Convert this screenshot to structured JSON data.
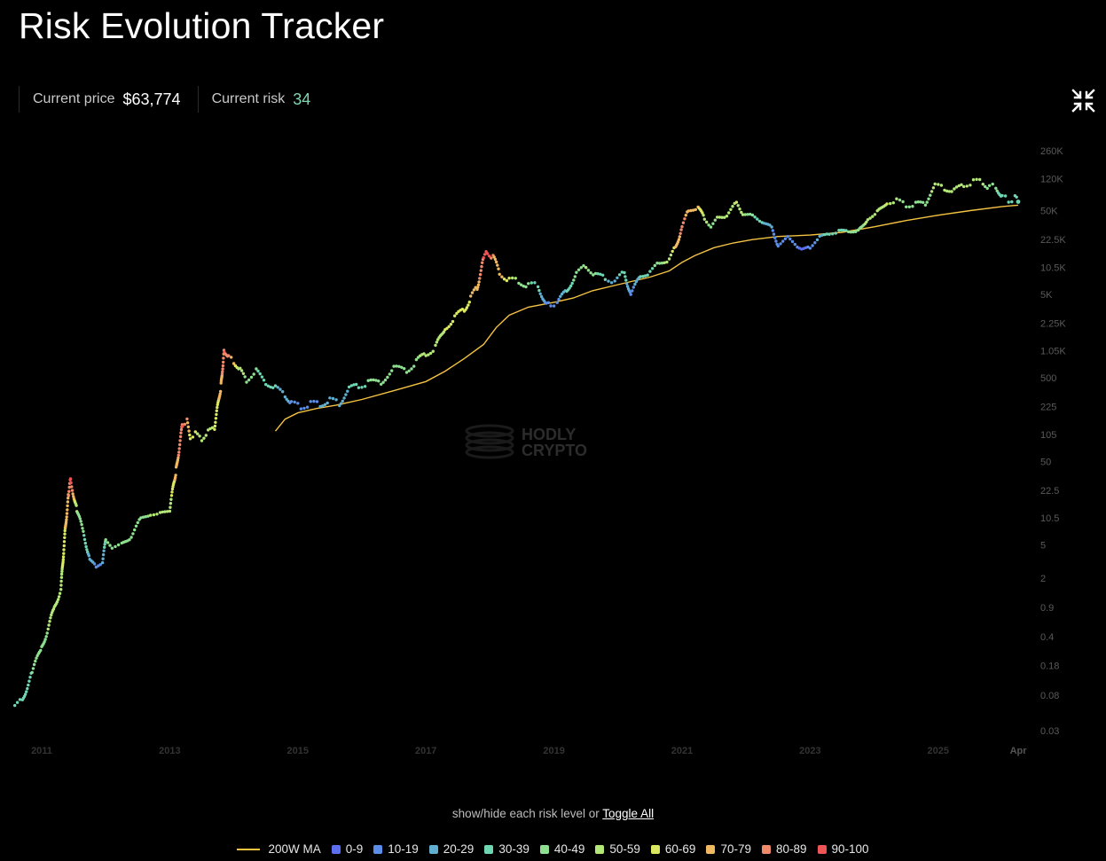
{
  "title": "Risk Evolution Tracker",
  "stats": {
    "price_label": "Current price",
    "price_value": "$63,774",
    "risk_label": "Current risk",
    "risk_value": "34",
    "risk_color": "#7fd6b0"
  },
  "controls": {
    "collapse_icon": "collapse-arrows-icon",
    "toggle_text": "show/hide each risk level or",
    "toggle_all": "Toggle All"
  },
  "watermark": {
    "line1": "HODLY",
    "line2": "CRYPTO"
  },
  "chart_data": {
    "type": "scatter",
    "x_scale": "time",
    "y_scale": "log",
    "x_ticks": [
      "2011",
      "2013",
      "2015",
      "2017",
      "2019",
      "2021",
      "2023",
      "2025",
      "Apr"
    ],
    "y_ticks": [
      "260K",
      "120K",
      "50K",
      "22.5K",
      "10.5K",
      "5K",
      "2.25K",
      "1.05K",
      "500",
      "225",
      "105",
      "50",
      "22.5",
      "10.5",
      "5",
      "2",
      "0.9",
      "0.4",
      "0.18",
      "0.08",
      "0.03"
    ],
    "y_tick_values": [
      260000,
      120000,
      50000,
      22500,
      10500,
      5000,
      2250,
      1050,
      500,
      225,
      105,
      50,
      22.5,
      10.5,
      5,
      2,
      0.9,
      0.4,
      0.18,
      0.08,
      0.03
    ],
    "grid": false,
    "legend_position": "bottom",
    "risk_colors": [
      "#5b6ff0",
      "#5a8ee8",
      "#60aed0",
      "#6fd6b2",
      "#8ee090",
      "#b3e878",
      "#dbe860",
      "#f0b860",
      "#f08a6a",
      "#f05555"
    ],
    "ma_color": "#f5c342",
    "legend": [
      {
        "label": "200W MA",
        "kind": "line",
        "color": "#f5c342"
      },
      {
        "label": "0-9",
        "kind": "dot",
        "color": "#5b6ff0"
      },
      {
        "label": "10-19",
        "kind": "dot",
        "color": "#5a8ee8"
      },
      {
        "label": "20-29",
        "kind": "dot",
        "color": "#60aed0"
      },
      {
        "label": "30-39",
        "kind": "dot",
        "color": "#6fd6b2"
      },
      {
        "label": "40-49",
        "kind": "dot",
        "color": "#8ee090"
      },
      {
        "label": "50-59",
        "kind": "dot",
        "color": "#b3e878"
      },
      {
        "label": "60-69",
        "kind": "dot",
        "color": "#dbe860"
      },
      {
        "label": "70-79",
        "kind": "dot",
        "color": "#f0b860"
      },
      {
        "label": "80-89",
        "kind": "dot",
        "color": "#f08a6a"
      },
      {
        "label": "90-100",
        "kind": "dot",
        "color": "#f05555"
      }
    ],
    "price_series": {
      "x": [
        2010.58,
        2010.7,
        2010.85,
        2011.0,
        2011.1,
        2011.2,
        2011.3,
        2011.37,
        2011.42,
        2011.45,
        2011.55,
        2011.65,
        2011.75,
        2011.85,
        2011.95,
        2012.0,
        2012.1,
        2012.25,
        2012.4,
        2012.55,
        2012.7,
        2012.85,
        2013.0,
        2013.1,
        2013.2,
        2013.27,
        2013.32,
        2013.4,
        2013.5,
        2013.6,
        2013.7,
        2013.8,
        2013.85,
        2013.92,
        2014.0,
        2014.1,
        2014.2,
        2014.35,
        2014.5,
        2014.65,
        2014.8,
        2014.9,
        2015.05,
        2015.2,
        2015.35,
        2015.5,
        2015.65,
        2015.8,
        2015.95,
        2016.1,
        2016.3,
        2016.5,
        2016.7,
        2016.85,
        2017.0,
        2017.15,
        2017.3,
        2017.45,
        2017.6,
        2017.7,
        2017.8,
        2017.9,
        2017.96,
        2018.05,
        2018.15,
        2018.3,
        2018.45,
        2018.6,
        2018.75,
        2018.88,
        2018.95,
        2019.05,
        2019.2,
        2019.35,
        2019.5,
        2019.65,
        2019.8,
        2019.95,
        2020.1,
        2020.2,
        2020.35,
        2020.5,
        2020.65,
        2020.8,
        2020.9,
        2021.0,
        2021.1,
        2021.25,
        2021.35,
        2021.45,
        2021.55,
        2021.7,
        2021.85,
        2021.95,
        2022.1,
        2022.25,
        2022.4,
        2022.5,
        2022.65,
        2022.8,
        2022.9,
        2023.0,
        2023.15,
        2023.3,
        2023.45,
        2023.6,
        2023.75,
        2023.9,
        2024.05,
        2024.2,
        2024.35,
        2024.5,
        2024.65,
        2024.8,
        2024.95,
        2025.1,
        2025.25,
        2025.4,
        2025.55,
        2025.7,
        2025.8,
        2025.9,
        2026.0,
        2026.1,
        2026.2,
        2026.25
      ],
      "y": [
        0.06,
        0.07,
        0.15,
        0.3,
        0.5,
        0.9,
        1.5,
        8,
        20,
        30,
        13,
        7,
        3.5,
        2.6,
        3.2,
        5.5,
        4.8,
        5,
        6.5,
        10,
        12,
        11.5,
        13.5,
        40,
        140,
        150,
        100,
        105,
        95,
        110,
        130,
        400,
        1100,
        850,
        800,
        600,
        480,
        590,
        450,
        370,
        320,
        240,
        230,
        240,
        245,
        265,
        250,
        360,
        410,
        430,
        450,
        640,
        620,
        770,
        980,
        1150,
        2000,
        2600,
        3300,
        4500,
        6000,
        13000,
        16000,
        14000,
        9000,
        7500,
        7000,
        6500,
        6300,
        3800,
        3700,
        3900,
        5500,
        9000,
        10500,
        8800,
        7500,
        7200,
        9000,
        5000,
        8000,
        9500,
        11500,
        13500,
        18000,
        33000,
        48000,
        57000,
        38000,
        33000,
        40000,
        45000,
        60000,
        47000,
        42000,
        38000,
        30000,
        20000,
        23000,
        19500,
        16500,
        19000,
        23000,
        28000,
        27000,
        30000,
        27000,
        42000,
        46000,
        65000,
        64000,
        60000,
        58000,
        63000,
        96000,
        95000,
        84000,
        105000,
        108000,
        112000,
        92000,
        100000,
        70000,
        68000,
        70000,
        63774
      ],
      "risk": [
        30,
        35,
        40,
        45,
        50,
        50,
        55,
        70,
        80,
        95,
        50,
        40,
        25,
        15,
        20,
        40,
        40,
        40,
        45,
        48,
        50,
        50,
        55,
        75,
        90,
        80,
        65,
        60,
        55,
        55,
        60,
        75,
        90,
        80,
        70,
        55,
        45,
        40,
        35,
        30,
        25,
        15,
        12,
        15,
        20,
        25,
        25,
        30,
        38,
        40,
        40,
        45,
        45,
        48,
        55,
        55,
        60,
        60,
        65,
        70,
        75,
        90,
        95,
        80,
        75,
        60,
        45,
        40,
        35,
        15,
        10,
        15,
        30,
        45,
        50,
        40,
        30,
        25,
        35,
        15,
        30,
        35,
        45,
        55,
        70,
        85,
        75,
        70,
        55,
        45,
        50,
        55,
        60,
        50,
        40,
        30,
        20,
        10,
        15,
        10,
        8,
        12,
        25,
        35,
        35,
        40,
        40,
        55,
        55,
        60,
        50,
        45,
        40,
        42,
        55,
        55,
        50,
        55,
        55,
        50,
        40,
        45,
        30,
        30,
        30,
        34
      ]
    },
    "ma_series": {
      "x": [
        2014.65,
        2014.8,
        2015.0,
        2015.3,
        2015.6,
        2016.0,
        2016.5,
        2017.0,
        2017.3,
        2017.6,
        2017.9,
        2018.1,
        2018.3,
        2018.6,
        2019.0,
        2019.3,
        2019.6,
        2020.0,
        2020.5,
        2020.8,
        2021.0,
        2021.2,
        2021.5,
        2021.8,
        2022.1,
        2022.5,
        2023.0,
        2023.5,
        2024.0,
        2024.5,
        2025.0,
        2025.5,
        2026.0,
        2026.25
      ],
      "y": [
        115,
        160,
        190,
        215,
        235,
        275,
        350,
        450,
        600,
        850,
        1250,
        2000,
        2800,
        3500,
        4000,
        4500,
        5500,
        6500,
        8000,
        9500,
        12000,
        14500,
        18000,
        20500,
        22500,
        24500,
        25500,
        27500,
        32000,
        38000,
        44000,
        50000,
        56000,
        58000
      ]
    }
  }
}
